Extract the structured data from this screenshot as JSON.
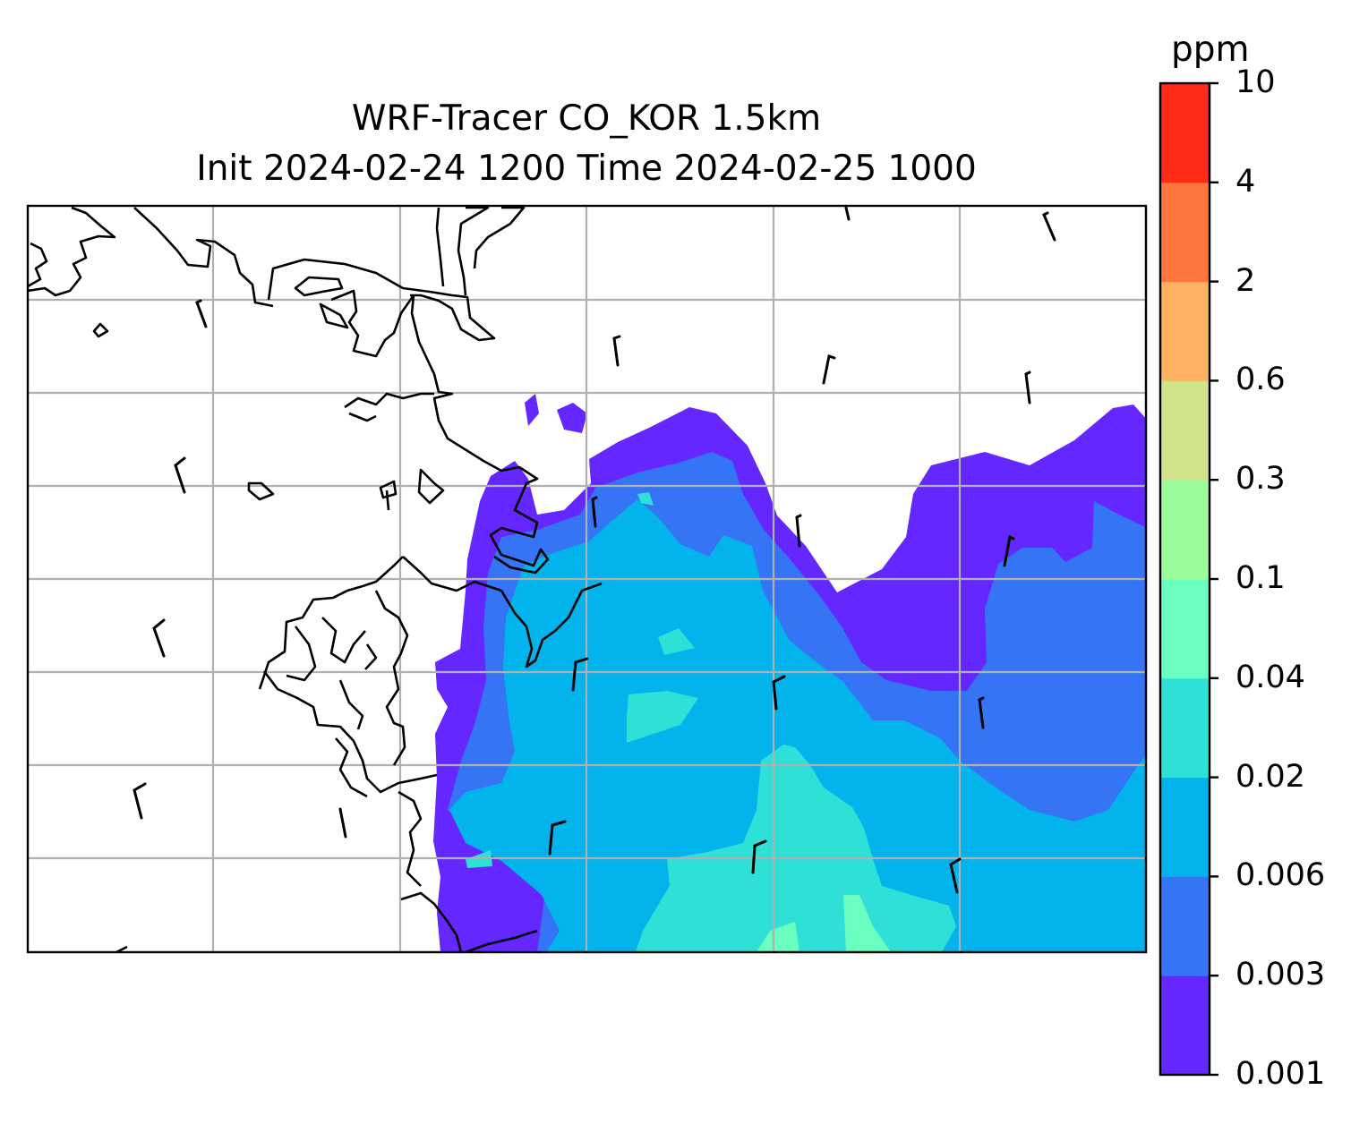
{
  "title": {
    "line1": "WRF-Tracer CO_KOR 1.5km",
    "line2": "Init 2024-02-24 1200 Time 2024-02-25 1000"
  },
  "colorbar": {
    "unit": "ppm",
    "levels": [
      "0.001",
      "0.003",
      "0.006",
      "0.02",
      "0.04",
      "0.1",
      "0.3",
      "0.6",
      "2",
      "4",
      "10"
    ],
    "colors": [
      "#6427ff",
      "#3575f5",
      "#02b3ec",
      "#2fe0d7",
      "#6bffbf",
      "#9bfc9c",
      "#d0e28a",
      "#ffb162",
      "#ff753e",
      "#ff2a17"
    ]
  },
  "map": {
    "type": "contour-map",
    "field": "CO tracer concentration",
    "gridlines": true,
    "coastlines": true,
    "wind_barbs": true,
    "filled_levels_present": [
      "0.001",
      "0.003",
      "0.006",
      "0.02",
      "0.04"
    ]
  }
}
